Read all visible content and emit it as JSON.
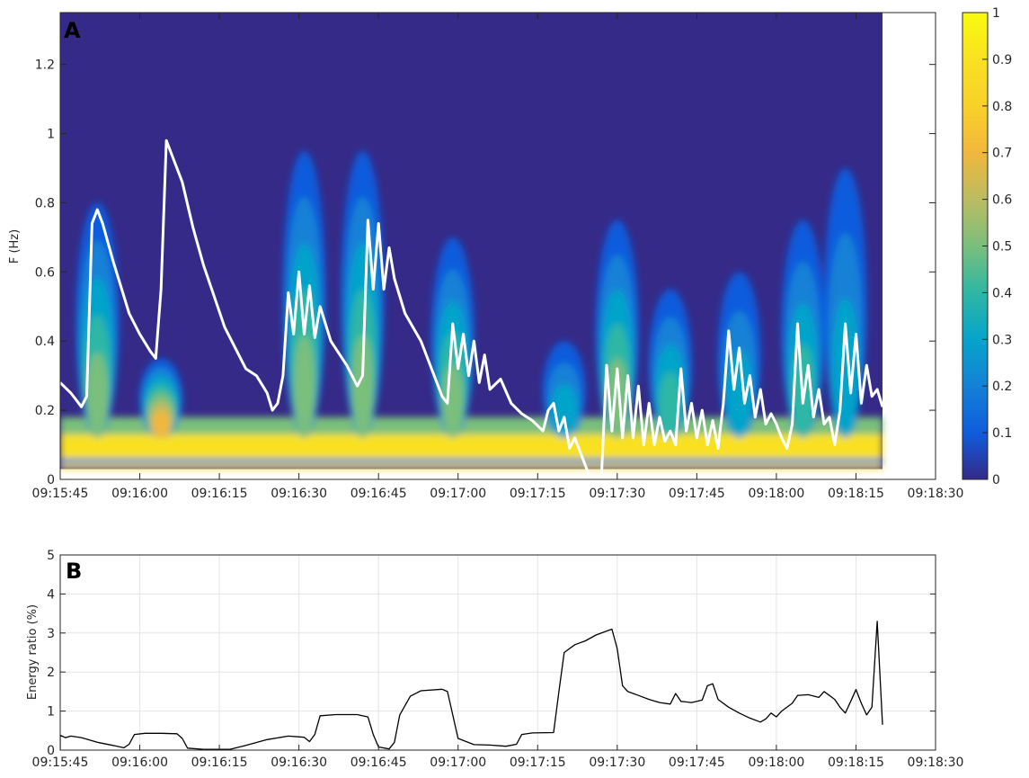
{
  "chart_data": [
    {
      "panel": "A",
      "type": "heatmap",
      "ylabel": "F (Hz)",
      "xlim": [
        "09:15:45",
        "09:18:30"
      ],
      "ylim": [
        0,
        1.35
      ],
      "x_ticks": [
        "09:15:45",
        "09:16:00",
        "09:16:15",
        "09:16:30",
        "09:16:45",
        "09:17:00",
        "09:17:15",
        "09:17:30",
        "09:17:45",
        "09:18:00",
        "09:18:15",
        "09:18:30"
      ],
      "y_ticks": [
        0,
        0.2,
        0.4,
        0.6,
        0.8,
        1,
        1.2
      ],
      "y_tick_labels": [
        "0",
        "0.2",
        "0.4",
        "0.6",
        "0.8",
        "1",
        "1.2"
      ],
      "colorbar": {
        "range": [
          0,
          1
        ],
        "ticks": [
          "0",
          "0.1",
          "0.2",
          "0.3",
          "0.4",
          "0.5",
          "0.6",
          "0.7",
          "0.8",
          "0.9",
          "1"
        ],
        "colormap": "parula"
      },
      "data_extent": {
        "t_start": "09:15:45",
        "t_end": "09:18:20",
        "f_min": 0.03,
        "f_max": 1.35
      },
      "bursts": [
        {
          "t": "09:15:52",
          "peak_f": 0.8,
          "intensity": 0.45
        },
        {
          "t": "09:16:04",
          "peak_f": 0.35,
          "intensity": 0.7
        },
        {
          "t": "09:16:31",
          "peak_f": 0.95,
          "intensity": 0.5
        },
        {
          "t": "09:16:42",
          "peak_f": 0.95,
          "intensity": 0.5
        },
        {
          "t": "09:16:59",
          "peak_f": 0.7,
          "intensity": 0.45
        },
        {
          "t": "09:17:20",
          "peak_f": 0.4,
          "intensity": 0.3
        },
        {
          "t": "09:17:30",
          "peak_f": 0.75,
          "intensity": 0.45
        },
        {
          "t": "09:17:40",
          "peak_f": 0.55,
          "intensity": 0.4
        },
        {
          "t": "09:17:53",
          "peak_f": 0.6,
          "intensity": 0.35
        },
        {
          "t": "09:18:05",
          "peak_f": 0.75,
          "intensity": 0.4
        },
        {
          "t": "09:18:13",
          "peak_f": 0.9,
          "intensity": 0.35
        }
      ],
      "series": [
        {
          "color": "#ffffff",
          "points": [
            [
              "09:15:45",
              0.28
            ],
            [
              "09:15:47",
              0.25
            ],
            [
              "09:15:49",
              0.21
            ],
            [
              "09:15:50",
              0.24
            ],
            [
              "09:15:51",
              0.74
            ],
            [
              "09:15:52",
              0.78
            ],
            [
              "09:15:53",
              0.74
            ],
            [
              "09:15:55",
              0.63
            ],
            [
              "09:15:57",
              0.53
            ],
            [
              "09:15:58",
              0.48
            ],
            [
              "09:16:00",
              0.42
            ],
            [
              "09:16:02",
              0.37
            ],
            [
              "09:16:03",
              0.35
            ],
            [
              "09:16:04",
              0.55
            ],
            [
              "09:16:05",
              0.98
            ],
            [
              "09:16:06",
              0.94
            ],
            [
              "09:16:08",
              0.86
            ],
            [
              "09:16:10",
              0.73
            ],
            [
              "09:16:12",
              0.62
            ],
            [
              "09:16:14",
              0.53
            ],
            [
              "09:16:16",
              0.44
            ],
            [
              "09:16:18",
              0.38
            ],
            [
              "09:16:20",
              0.32
            ],
            [
              "09:16:22",
              0.3
            ],
            [
              "09:16:24",
              0.25
            ],
            [
              "09:16:25",
              0.2
            ],
            [
              "09:16:26",
              0.22
            ],
            [
              "09:16:27",
              0.3
            ],
            [
              "09:16:28",
              0.54
            ],
            [
              "09:16:29",
              0.42
            ],
            [
              "09:16:30",
              0.6
            ],
            [
              "09:16:31",
              0.42
            ],
            [
              "09:16:32",
              0.56
            ],
            [
              "09:16:33",
              0.41
            ],
            [
              "09:16:34",
              0.5
            ],
            [
              "09:16:36",
              0.4
            ],
            [
              "09:16:39",
              0.33
            ],
            [
              "09:16:41",
              0.27
            ],
            [
              "09:16:42",
              0.3
            ],
            [
              "09:16:43",
              0.75
            ],
            [
              "09:16:44",
              0.55
            ],
            [
              "09:16:45",
              0.74
            ],
            [
              "09:16:46",
              0.55
            ],
            [
              "09:16:47",
              0.67
            ],
            [
              "09:16:48",
              0.58
            ],
            [
              "09:16:50",
              0.48
            ],
            [
              "09:16:53",
              0.4
            ],
            [
              "09:16:55",
              0.32
            ],
            [
              "09:16:57",
              0.24
            ],
            [
              "09:16:58",
              0.22
            ],
            [
              "09:16:59",
              0.45
            ],
            [
              "09:17:00",
              0.32
            ],
            [
              "09:17:01",
              0.42
            ],
            [
              "09:17:02",
              0.3
            ],
            [
              "09:17:03",
              0.4
            ],
            [
              "09:17:04",
              0.28
            ],
            [
              "09:17:05",
              0.36
            ],
            [
              "09:17:06",
              0.26
            ],
            [
              "09:17:08",
              0.29
            ],
            [
              "09:17:10",
              0.22
            ],
            [
              "09:17:12",
              0.19
            ],
            [
              "09:17:14",
              0.17
            ],
            [
              "09:17:16",
              0.14
            ],
            [
              "09:17:17",
              0.2
            ],
            [
              "09:17:18",
              0.22
            ],
            [
              "09:17:19",
              0.14
            ],
            [
              "09:17:20",
              0.18
            ],
            [
              "09:17:21",
              0.09
            ],
            [
              "09:17:22",
              0.12
            ],
            [
              "09:17:24",
              0.04
            ],
            [
              "09:17:25",
              0.0
            ],
            [
              "09:17:27",
              0.0
            ],
            [
              "09:17:28",
              0.33
            ],
            [
              "09:17:29",
              0.14
            ],
            [
              "09:17:30",
              0.32
            ],
            [
              "09:17:31",
              0.12
            ],
            [
              "09:17:32",
              0.3
            ],
            [
              "09:17:33",
              0.12
            ],
            [
              "09:17:34",
              0.27
            ],
            [
              "09:17:35",
              0.1
            ],
            [
              "09:17:36",
              0.22
            ],
            [
              "09:17:37",
              0.1
            ],
            [
              "09:17:38",
              0.18
            ],
            [
              "09:17:39",
              0.11
            ],
            [
              "09:17:40",
              0.14
            ],
            [
              "09:17:41",
              0.1
            ],
            [
              "09:17:42",
              0.32
            ],
            [
              "09:17:43",
              0.14
            ],
            [
              "09:17:44",
              0.22
            ],
            [
              "09:17:45",
              0.12
            ],
            [
              "09:17:46",
              0.2
            ],
            [
              "09:17:47",
              0.1
            ],
            [
              "09:17:48",
              0.17
            ],
            [
              "09:17:49",
              0.09
            ],
            [
              "09:17:50",
              0.22
            ],
            [
              "09:17:51",
              0.43
            ],
            [
              "09:17:52",
              0.26
            ],
            [
              "09:17:53",
              0.38
            ],
            [
              "09:17:54",
              0.22
            ],
            [
              "09:17:55",
              0.3
            ],
            [
              "09:17:56",
              0.18
            ],
            [
              "09:17:57",
              0.26
            ],
            [
              "09:17:58",
              0.16
            ],
            [
              "09:17:59",
              0.19
            ],
            [
              "09:18:00",
              0.16
            ],
            [
              "09:18:01",
              0.12
            ],
            [
              "09:18:02",
              0.09
            ],
            [
              "09:18:03",
              0.16
            ],
            [
              "09:18:04",
              0.45
            ],
            [
              "09:18:05",
              0.22
            ],
            [
              "09:18:06",
              0.33
            ],
            [
              "09:18:07",
              0.18
            ],
            [
              "09:18:08",
              0.26
            ],
            [
              "09:18:09",
              0.16
            ],
            [
              "09:18:10",
              0.18
            ],
            [
              "09:18:11",
              0.1
            ],
            [
              "09:18:12",
              0.2
            ],
            [
              "09:18:13",
              0.45
            ],
            [
              "09:18:14",
              0.25
            ],
            [
              "09:18:15",
              0.42
            ],
            [
              "09:18:16",
              0.22
            ],
            [
              "09:18:17",
              0.33
            ],
            [
              "09:18:18",
              0.24
            ],
            [
              "09:18:19",
              0.26
            ],
            [
              "09:18:20",
              0.21
            ]
          ]
        }
      ]
    },
    {
      "panel": "B",
      "type": "line",
      "ylabel": "Energy ratio (%)",
      "xlim": [
        "09:15:45",
        "09:18:30"
      ],
      "ylim": [
        0,
        5
      ],
      "grid": true,
      "x_ticks": [
        "09:15:45",
        "09:16:00",
        "09:16:15",
        "09:16:30",
        "09:16:45",
        "09:17:00",
        "09:17:15",
        "09:17:30",
        "09:17:45",
        "09:18:00",
        "09:18:15",
        "09:18:30"
      ],
      "y_ticks": [
        0,
        1,
        2,
        3,
        4,
        5
      ],
      "y_tick_labels": [
        "0",
        "1",
        "2",
        "3",
        "4",
        "5"
      ],
      "series": [
        {
          "color": "#000000",
          "points": [
            [
              "09:15:45",
              0.0
            ],
            [
              "09:15:45",
              0.38
            ],
            [
              "09:15:46",
              0.32
            ],
            [
              "09:15:47",
              0.36
            ],
            [
              "09:15:49",
              0.32
            ],
            [
              "09:15:52",
              0.2
            ],
            [
              "09:15:55",
              0.12
            ],
            [
              "09:15:57",
              0.06
            ],
            [
              "09:15:58",
              0.15
            ],
            [
              "09:15:59",
              0.4
            ],
            [
              "09:16:01",
              0.43
            ],
            [
              "09:16:04",
              0.43
            ],
            [
              "09:16:07",
              0.42
            ],
            [
              "09:16:08",
              0.3
            ],
            [
              "09:16:09",
              0.05
            ],
            [
              "09:16:12",
              0.02
            ],
            [
              "09:16:17",
              0.02
            ],
            [
              "09:16:20",
              0.12
            ],
            [
              "09:16:24",
              0.27
            ],
            [
              "09:16:28",
              0.36
            ],
            [
              "09:16:31",
              0.33
            ],
            [
              "09:16:32",
              0.22
            ],
            [
              "09:16:33",
              0.4
            ],
            [
              "09:16:34",
              0.88
            ],
            [
              "09:16:37",
              0.91
            ],
            [
              "09:16:41",
              0.91
            ],
            [
              "09:16:43",
              0.85
            ],
            [
              "09:16:44",
              0.4
            ],
            [
              "09:16:45",
              0.08
            ],
            [
              "09:16:47",
              0.03
            ],
            [
              "09:16:48",
              0.2
            ],
            [
              "09:16:49",
              0.9
            ],
            [
              "09:16:51",
              1.38
            ],
            [
              "09:16:53",
              1.52
            ],
            [
              "09:16:57",
              1.56
            ],
            [
              "09:16:58",
              1.5
            ],
            [
              "09:16:59",
              0.9
            ],
            [
              "09:17:00",
              0.3
            ],
            [
              "09:17:03",
              0.14
            ],
            [
              "09:17:06",
              0.13
            ],
            [
              "09:17:09",
              0.1
            ],
            [
              "09:17:11",
              0.15
            ],
            [
              "09:17:12",
              0.4
            ],
            [
              "09:17:14",
              0.44
            ],
            [
              "09:17:18",
              0.45
            ],
            [
              "09:17:19",
              1.5
            ],
            [
              "09:17:20",
              2.5
            ],
            [
              "09:17:22",
              2.7
            ],
            [
              "09:17:24",
              2.8
            ],
            [
              "09:17:26",
              2.95
            ],
            [
              "09:17:28",
              3.05
            ],
            [
              "09:17:29",
              3.1
            ],
            [
              "09:17:30",
              2.6
            ],
            [
              "09:17:31",
              1.65
            ],
            [
              "09:17:32",
              1.5
            ],
            [
              "09:17:34",
              1.4
            ],
            [
              "09:17:36",
              1.3
            ],
            [
              "09:17:38",
              1.22
            ],
            [
              "09:17:40",
              1.18
            ],
            [
              "09:17:41",
              1.45
            ],
            [
              "09:17:42",
              1.25
            ],
            [
              "09:17:44",
              1.22
            ],
            [
              "09:17:46",
              1.28
            ],
            [
              "09:17:47",
              1.65
            ],
            [
              "09:17:48",
              1.7
            ],
            [
              "09:17:49",
              1.3
            ],
            [
              "09:17:51",
              1.1
            ],
            [
              "09:17:53",
              0.95
            ],
            [
              "09:17:55",
              0.82
            ],
            [
              "09:17:57",
              0.72
            ],
            [
              "09:17:58",
              0.8
            ],
            [
              "09:17:59",
              0.95
            ],
            [
              "09:18:00",
              0.85
            ],
            [
              "09:18:01",
              1.0
            ],
            [
              "09:18:03",
              1.2
            ],
            [
              "09:18:04",
              1.4
            ],
            [
              "09:18:06",
              1.42
            ],
            [
              "09:18:08",
              1.35
            ],
            [
              "09:18:09",
              1.5
            ],
            [
              "09:18:10",
              1.4
            ],
            [
              "09:18:11",
              1.3
            ],
            [
              "09:18:12",
              1.1
            ],
            [
              "09:18:13",
              0.95
            ],
            [
              "09:18:14",
              1.25
            ],
            [
              "09:18:15",
              1.55
            ],
            [
              "09:18:16",
              1.2
            ],
            [
              "09:18:17",
              0.9
            ],
            [
              "09:18:18",
              1.1
            ],
            [
              "09:18:19",
              3.3
            ],
            [
              "09:18:20",
              0.65
            ]
          ]
        }
      ]
    }
  ],
  "labels": {
    "panel_a": "A",
    "panel_b": "B"
  }
}
